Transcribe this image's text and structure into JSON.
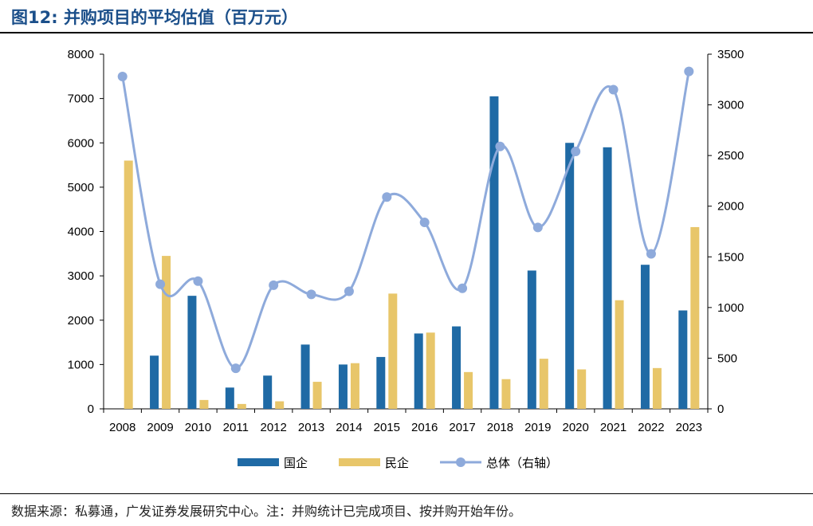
{
  "title": "图12: 并购项目的平均估值（百万元）",
  "source": "数据来源：私募通，广发证券发展研究中心。注：并购统计已完成项目、按并购开始年份。",
  "colors": {
    "soe": "#1f6aa5",
    "private": "#e8c66a",
    "total": "#8eaadb",
    "title": "#1b4f8a"
  },
  "chart_data": {
    "type": "bar",
    "categories": [
      "2008",
      "2009",
      "2010",
      "2011",
      "2012",
      "2013",
      "2014",
      "2015",
      "2016",
      "2017",
      "2018",
      "2019",
      "2020",
      "2021",
      "2022",
      "2023"
    ],
    "series": [
      {
        "name": "国企",
        "type": "bar",
        "axis": "left",
        "values": [
          0,
          1200,
          2550,
          480,
          750,
          1450,
          1000,
          1170,
          1700,
          1860,
          7050,
          3120,
          6000,
          5900,
          3250,
          2220
        ]
      },
      {
        "name": "民企",
        "type": "bar",
        "axis": "left",
        "values": [
          5600,
          3450,
          200,
          110,
          170,
          610,
          1030,
          2600,
          1720,
          830,
          670,
          1130,
          890,
          2450,
          920,
          4100
        ]
      },
      {
        "name": "总体（右轴）",
        "type": "line",
        "axis": "right",
        "values": [
          3280,
          1230,
          1260,
          400,
          1220,
          1130,
          1160,
          2090,
          1840,
          1190,
          2590,
          1790,
          2540,
          3150,
          1530,
          3330
        ]
      }
    ],
    "ylim_left": [
      0,
      8000
    ],
    "yticks_left": [
      0,
      1000,
      2000,
      3000,
      4000,
      5000,
      6000,
      7000,
      8000
    ],
    "ylim_right": [
      0,
      3500
    ],
    "yticks_right": [
      0,
      500,
      1000,
      1500,
      2000,
      2500,
      3000,
      3500
    ],
    "legend_position": "bottom",
    "grid": false
  }
}
